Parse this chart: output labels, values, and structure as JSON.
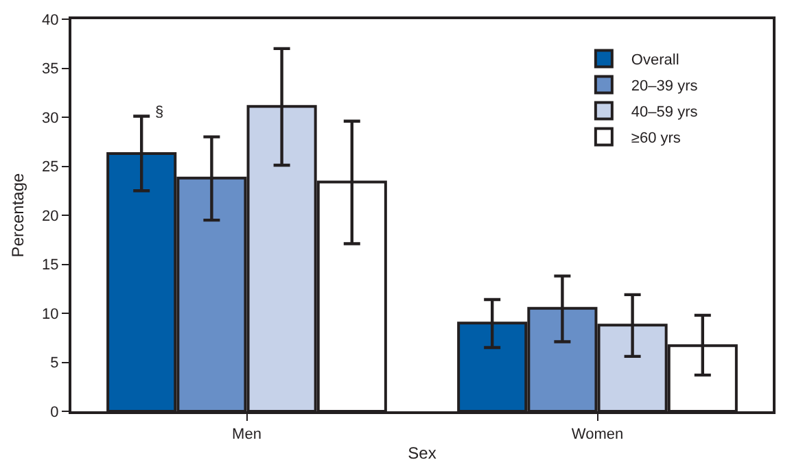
{
  "chart_data": {
    "type": "bar",
    "xlabel": "Sex",
    "ylabel": "Percentage",
    "categories": [
      "Men",
      "Women"
    ],
    "series": [
      {
        "name": "Overall",
        "color": "#005ea8",
        "values": [
          26.3,
          9.0
        ],
        "errors": [
          [
            22.5,
            30.1
          ],
          [
            6.5,
            11.4
          ]
        ]
      },
      {
        "name": "20–39 yrs",
        "color": "#688fc7",
        "values": [
          23.8,
          10.5
        ],
        "errors": [
          [
            19.5,
            28.0
          ],
          [
            7.1,
            13.8
          ]
        ]
      },
      {
        "name": "40–59 yrs",
        "color": "#c6d2e9",
        "values": [
          31.1,
          8.8
        ],
        "errors": [
          [
            25.1,
            37.0
          ],
          [
            5.6,
            11.9
          ]
        ]
      },
      {
        "name": "≥60 yrs",
        "color": "#ffffff",
        "values": [
          23.4,
          6.7
        ],
        "errors": [
          [
            17.1,
            29.6
          ],
          [
            3.7,
            9.8
          ]
        ]
      }
    ],
    "ylim": [
      0,
      40
    ],
    "yticks": [
      0,
      5,
      10,
      15,
      20,
      25,
      30,
      35,
      40
    ],
    "grid": false,
    "legend": "top right",
    "annotations": [
      "§"
    ]
  }
}
